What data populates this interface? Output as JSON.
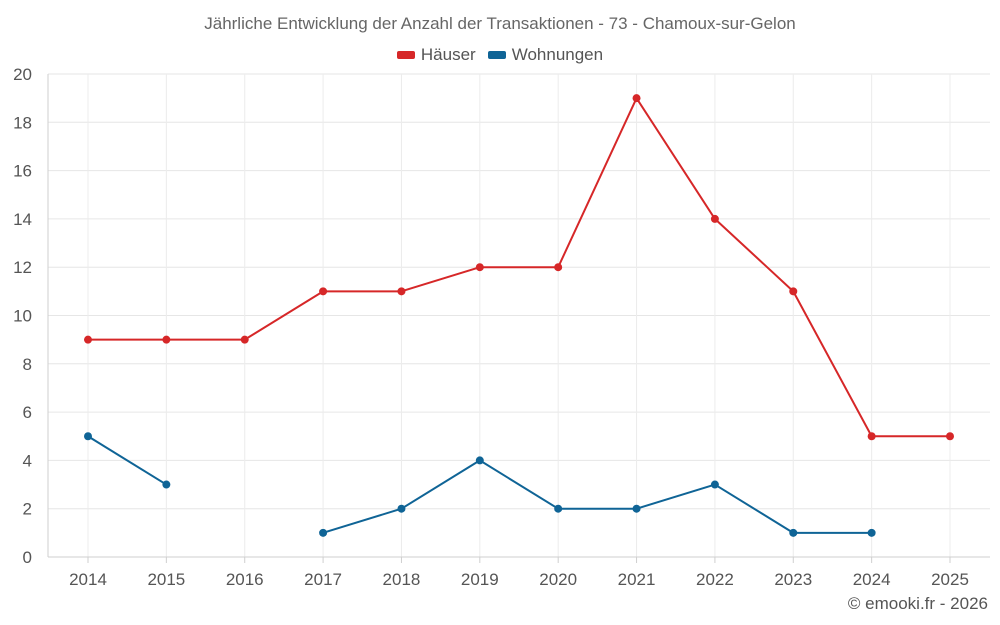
{
  "chart_data": {
    "type": "line",
    "title": "Jährliche Entwicklung der Anzahl der Transaktionen - 73 - Chamoux-sur-Gelon",
    "xlabel": "",
    "ylabel": "",
    "categories": [
      "2014",
      "2015",
      "2016",
      "2017",
      "2018",
      "2019",
      "2020",
      "2021",
      "2022",
      "2023",
      "2024",
      "2025"
    ],
    "ylim": [
      0,
      20
    ],
    "yticks": [
      "0",
      "2",
      "4",
      "6",
      "8",
      "10",
      "12",
      "14",
      "16",
      "18",
      "20"
    ],
    "grid": true,
    "legend_position": "top-center",
    "series": [
      {
        "name": "Häuser",
        "color": "#d62728",
        "values": [
          9,
          9,
          9,
          11,
          11,
          12,
          12,
          19,
          14,
          11,
          5,
          5
        ]
      },
      {
        "name": "Wohnungen",
        "color": "#0f6496",
        "values": [
          5,
          3,
          null,
          1,
          2,
          4,
          2,
          2,
          3,
          1,
          1,
          null
        ]
      }
    ]
  },
  "credit": "© emooki.fr - 2026"
}
